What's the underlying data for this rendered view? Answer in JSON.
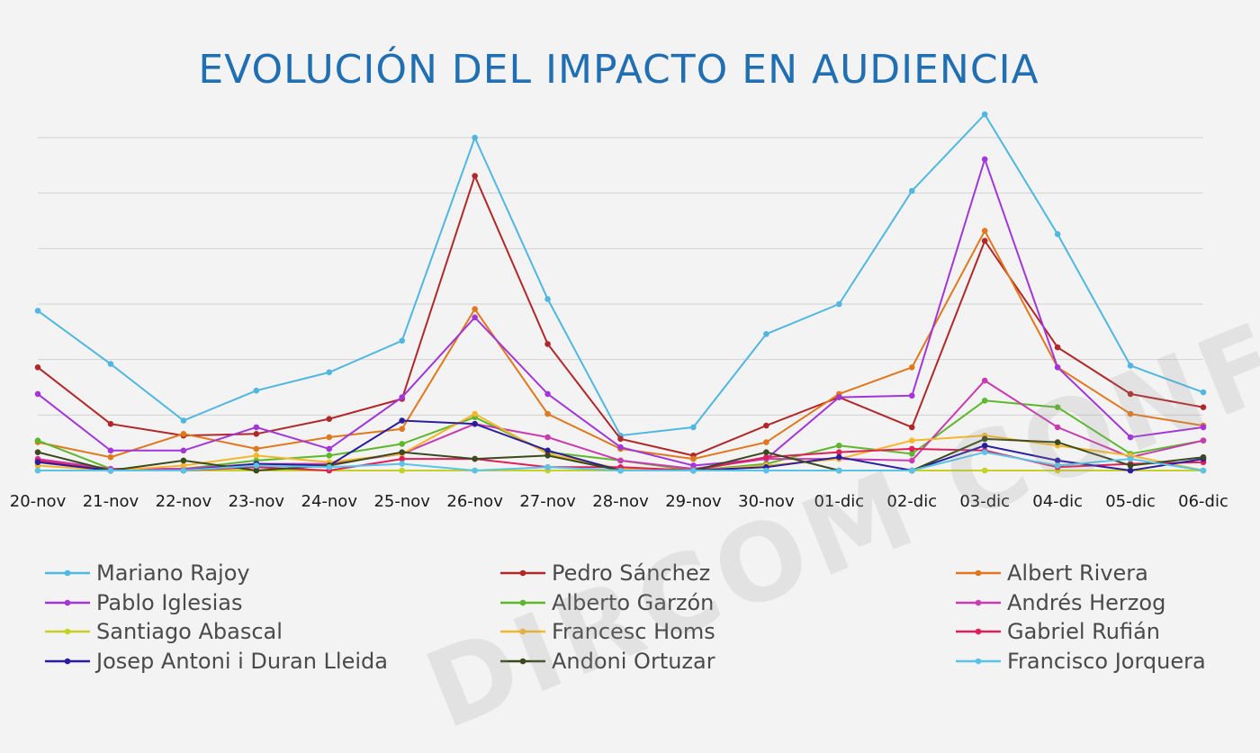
{
  "watermark": "DIRCOM CONFIDENCIAL",
  "chart_data": {
    "type": "line",
    "title": "EVOLUCIÓN DEL IMPACTO EN AUDIENCIA",
    "xlabel": "",
    "ylabel": "",
    "grid": true,
    "legend_position": "bottom",
    "ylim": [
      0,
      100
    ],
    "categories": [
      "20-nov",
      "21-nov",
      "22-nov",
      "23-nov",
      "24-nov",
      "25-nov",
      "26-nov",
      "27-nov",
      "28-nov",
      "29-nov",
      "30-nov",
      "01-dic",
      "02-dic",
      "03-dic",
      "04-dic",
      "05-dic",
      "06-dic"
    ],
    "series": [
      {
        "name": "Mariano Rajoy",
        "color": "#4fb7e0",
        "values": [
          48,
          32,
          15,
          24,
          29.5,
          39,
          100,
          51.5,
          10.5,
          13,
          41,
          50,
          84,
          107,
          71,
          31.5,
          23.5
        ]
      },
      {
        "name": "Pedro Sánchez",
        "color": "#b0282a",
        "values": [
          31,
          14,
          10.5,
          11,
          15.5,
          21.5,
          88.5,
          38,
          9.5,
          4.5,
          13.5,
          22,
          13,
          69,
          37,
          23,
          19
        ]
      },
      {
        "name": "Albert Rivera",
        "color": "#e0781e",
        "values": [
          8.5,
          4,
          11,
          6.5,
          10,
          12.5,
          48.5,
          17,
          6.5,
          3.5,
          8.5,
          23,
          31,
          72,
          31,
          17,
          13.5
        ]
      },
      {
        "name": "Pablo Iglesias",
        "color": "#a236d8",
        "values": [
          23,
          6,
          6,
          13,
          6.5,
          22,
          46,
          23,
          7,
          1.5,
          3.5,
          22,
          22.5,
          93.5,
          31,
          10,
          13
        ]
      },
      {
        "name": "Alberto Garzón",
        "color": "#5cb82a",
        "values": [
          9,
          0.5,
          0.5,
          3,
          4.5,
          8,
          16,
          5.5,
          3,
          0,
          2,
          7.5,
          5,
          21,
          19,
          5,
          9
        ]
      },
      {
        "name": "Andrés Herzog",
        "color": "#c83cb0",
        "values": [
          3.5,
          0.5,
          0.5,
          2,
          2,
          5,
          14,
          10,
          3,
          0.5,
          3.5,
          3.5,
          3,
          27,
          13,
          4,
          9
        ]
      },
      {
        "name": "Santiago Abascal",
        "color": "#c7d125",
        "values": [
          0,
          0,
          0,
          0,
          0,
          0,
          0,
          0,
          0,
          0,
          0,
          0,
          0,
          0,
          0,
          0,
          0
        ]
      },
      {
        "name": "Francesc Homs",
        "color": "#f4b62a",
        "values": [
          1.5,
          0,
          1.5,
          4.5,
          2.5,
          5,
          17,
          5,
          0.5,
          0,
          1.5,
          3.5,
          9,
          10.5,
          7.5,
          4.5,
          0
        ]
      },
      {
        "name": "Gabriel Rufián",
        "color": "#e01e5a",
        "values": [
          3,
          0,
          0,
          1,
          0,
          3.5,
          3.5,
          1,
          1,
          0,
          4,
          5.5,
          6.5,
          6,
          1,
          2,
          2.5
        ]
      },
      {
        "name": "Josep Antoni i Duran Lleida",
        "color": "#2a1e9c",
        "values": [
          2.5,
          0,
          0,
          2,
          1.5,
          15,
          14,
          6,
          0,
          0,
          1,
          4,
          0,
          7.5,
          3,
          0,
          3.5
        ]
      },
      {
        "name": "Andoni Ortuzar",
        "color": "#3a4a1e",
        "values": [
          5.5,
          0,
          3,
          0,
          1.5,
          5.5,
          3.5,
          4.5,
          0,
          0,
          5.5,
          0,
          0,
          9.5,
          8.5,
          1.5,
          4
        ]
      },
      {
        "name": "Francisco Jorquera",
        "color": "#5ac3e8",
        "values": [
          0,
          0,
          0,
          1.5,
          1,
          2,
          0,
          1,
          0,
          0,
          0,
          0,
          0,
          5.5,
          1.5,
          3.5,
          0
        ]
      }
    ]
  }
}
